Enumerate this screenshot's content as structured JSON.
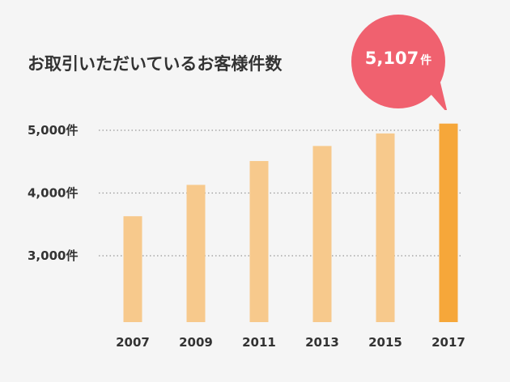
{
  "title": "お取引いただいているお客様件数",
  "callout": {
    "value": "5,107",
    "unit": "件"
  },
  "colors": {
    "bar": "#f7c98c",
    "highlight": "#f6a73a",
    "callout": "#f0616f",
    "grid": "#999999"
  },
  "chart_data": {
    "type": "bar",
    "title": "お取引いただいているお客様件数",
    "categories": [
      "2007",
      "2009",
      "2011",
      "2013",
      "2015",
      "2017"
    ],
    "values": [
      3630,
      4130,
      4510,
      4750,
      4950,
      5107
    ],
    "highlight_index": 5,
    "y_ticks": [
      3000,
      4000,
      5000
    ],
    "y_tick_labels": [
      "3,000件",
      "4,000件",
      "5,000件"
    ],
    "xlabel": "",
    "ylabel": "",
    "grid": "horizontal-dotted"
  }
}
